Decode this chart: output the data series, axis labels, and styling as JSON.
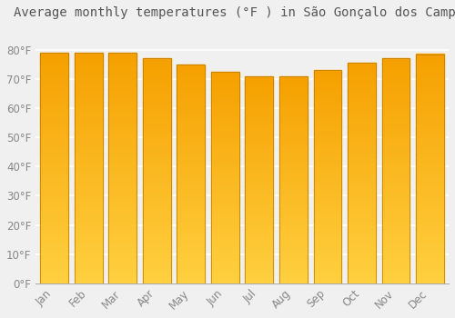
{
  "title": "Average monthly temperatures (°F ) in São Gonçalo dos Campos",
  "months": [
    "Jan",
    "Feb",
    "Mar",
    "Apr",
    "May",
    "Jun",
    "Jul",
    "Aug",
    "Sep",
    "Oct",
    "Nov",
    "Dec"
  ],
  "values": [
    79,
    79,
    79,
    77,
    75,
    72.5,
    71,
    71,
    73,
    75.5,
    77,
    78.5
  ],
  "bar_color_top": "#F5A000",
  "bar_color_bottom": "#FFD040",
  "ylim": [
    0,
    88
  ],
  "yticks": [
    0,
    10,
    20,
    30,
    40,
    50,
    60,
    70,
    80
  ],
  "background_color": "#f0f0f0",
  "grid_color": "#ffffff",
  "title_fontsize": 10,
  "tick_fontsize": 8.5,
  "bar_width": 0.82
}
